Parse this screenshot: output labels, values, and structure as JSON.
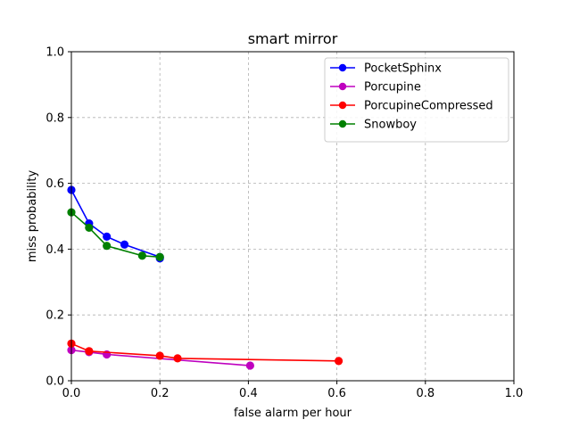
{
  "chart_data": {
    "type": "line",
    "title": "smart mirror",
    "xlabel": "false alarm per hour",
    "ylabel": "miss probability",
    "xlim": [
      0,
      1
    ],
    "ylim": [
      0,
      1
    ],
    "xticks": [
      "0.0",
      "0.2",
      "0.4",
      "0.6",
      "0.8",
      "1.0"
    ],
    "yticks": [
      "0.0",
      "0.2",
      "0.4",
      "0.6",
      "0.8",
      "1.0"
    ],
    "grid": true,
    "legend_position": "top-right",
    "series": [
      {
        "name": "PocketSphinx",
        "color": "#0000ff",
        "marker": "circle",
        "x": [
          0.0,
          0.04,
          0.08,
          0.12,
          0.2,
          0.2
        ],
        "y": [
          0.58,
          0.478,
          0.438,
          0.414,
          0.376,
          0.372
        ]
      },
      {
        "name": "Porcupine",
        "color": "#bf00bf",
        "marker": "circle",
        "x": [
          0.0,
          0.04,
          0.08,
          0.404
        ],
        "y": [
          0.093,
          0.087,
          0.08,
          0.046
        ]
      },
      {
        "name": "PorcupineCompressed",
        "color": "#ff0000",
        "marker": "circle",
        "x": [
          0.0,
          0.04,
          0.2,
          0.24,
          0.604
        ],
        "y": [
          0.113,
          0.09,
          0.076,
          0.068,
          0.06
        ]
      },
      {
        "name": "Snowboy",
        "color": "#008000",
        "marker": "circle",
        "x": [
          0.0,
          0.04,
          0.08,
          0.16,
          0.2
        ],
        "y": [
          0.512,
          0.465,
          0.41,
          0.38,
          0.376
        ]
      }
    ]
  }
}
